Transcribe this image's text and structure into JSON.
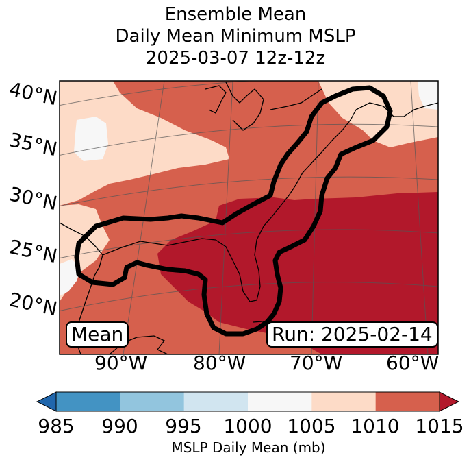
{
  "title": {
    "line1": "Ensemble Mean",
    "line2": "Daily Mean Minimum MSLP",
    "line3": "2025-03-07 12z-12z"
  },
  "map": {
    "latitude_labels": [
      "40°N",
      "35°N",
      "30°N",
      "25°N",
      "20°N"
    ],
    "longitude_labels": [
      "90°W",
      "80°W",
      "70°W",
      "60°W"
    ],
    "mean_box": "Mean",
    "run_box": "Run: 2025-02-14",
    "contour": "bold black outline tracing the low-pressure track from Texas coast through Gulf of Mexico, Florida and up the US East Coast to Atlantic Canada"
  },
  "colorbar": {
    "label": "MSLP Daily Mean (mb)",
    "ticks": [
      "985",
      "990",
      "995",
      "1000",
      "1005",
      "1010",
      "1015"
    ],
    "colors": [
      "#2066ac",
      "#4393c3",
      "#92c5de",
      "#d1e5f0",
      "#f7f7f7",
      "#fddbc7",
      "#d6604d",
      "#b2182b"
    ]
  }
}
